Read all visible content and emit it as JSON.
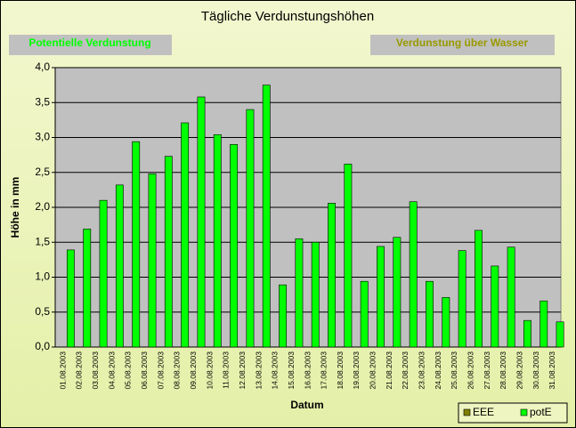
{
  "chart_data": {
    "type": "bar",
    "title": "Tägliche Verdunstungshöhen",
    "annotations": [
      "Potentielle Verdunstung",
      "Verdunstung über Wasser"
    ],
    "xlabel": "Datum",
    "ylabel": "Höhe in mm",
    "categories": [
      "01.08.2003",
      "02.08.2003",
      "03.08.2003",
      "04.08.2003",
      "05.08.2003",
      "06.08.2003",
      "07.08.2003",
      "08.08.2003",
      "09.08.2003",
      "10.08.2003",
      "11.08.2003",
      "12.08.2003",
      "13.08.2003",
      "14.08.2003",
      "15.08.2003",
      "16.08.2003",
      "17.08.2003",
      "18.08.2003",
      "19.08.2003",
      "20.08.2003",
      "21.08.2003",
      "22.08.2003",
      "23.08.2003",
      "24.08.2003",
      "25.08.2003",
      "26.08.2003",
      "27.08.2003",
      "28.08.2003",
      "29.08.2003",
      "30.08.2003",
      "31.08.2003"
    ],
    "series": [
      {
        "name": "EEE",
        "color": "#808000",
        "values": [
          null,
          null,
          null,
          null,
          null,
          null,
          null,
          null,
          null,
          null,
          null,
          null,
          null,
          null,
          null,
          null,
          null,
          null,
          null,
          null,
          null,
          null,
          null,
          null,
          null,
          null,
          null,
          null,
          null,
          null,
          null
        ]
      },
      {
        "name": "potE",
        "color": "#00ff00",
        "values": [
          1.39,
          1.69,
          2.1,
          2.32,
          2.94,
          2.48,
          2.73,
          3.21,
          3.58,
          3.04,
          2.9,
          3.4,
          3.75,
          0.89,
          1.55,
          1.5,
          2.06,
          2.62,
          0.94,
          1.44,
          1.57,
          2.08,
          0.94,
          0.71,
          1.38,
          1.67,
          1.16,
          1.43,
          0.38,
          0.66,
          0.36
        ]
      }
    ],
    "ylim": [
      0,
      4
    ],
    "yticks": [
      {
        "value": 0,
        "label": "0,0"
      },
      {
        "value": 0.5,
        "label": "0,5"
      },
      {
        "value": 1,
        "label": "1,0"
      },
      {
        "value": 1.5,
        "label": "1,5"
      },
      {
        "value": 2,
        "label": "2,0"
      },
      {
        "value": 2.5,
        "label": "2,5"
      },
      {
        "value": 3,
        "label": "3,0"
      },
      {
        "value": 3.5,
        "label": "3,5"
      },
      {
        "value": 4,
        "label": "4,0"
      }
    ],
    "grid": true,
    "legend": "lower right"
  }
}
